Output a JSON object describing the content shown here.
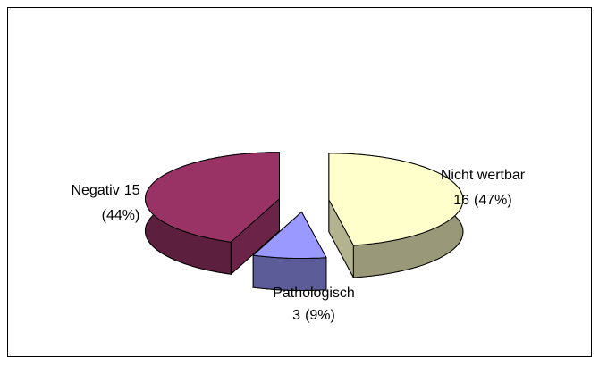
{
  "chart_data": {
    "type": "pie3d",
    "categories": [
      "Nicht wertbar",
      "Pathologisch",
      "Negativ"
    ],
    "values": [
      16,
      3,
      15
    ],
    "percent_labels": [
      "(47%)",
      "(9%)",
      "(44%)"
    ],
    "colors": [
      "#ffffcc",
      "#9999ff",
      "#993366"
    ]
  }
}
